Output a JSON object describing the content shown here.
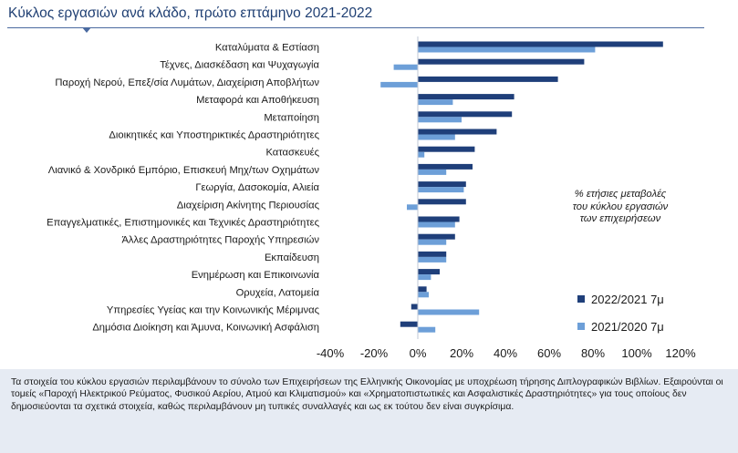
{
  "chart_data": {
    "type": "bar",
    "orientation": "horizontal",
    "title": "Κύκλος εργασιών ανά κλάδο, πρώτο επτάμηνο 2021-2022",
    "annotation": [
      "% ετήσιες μεταβολές",
      "του κύκλου εργασιών",
      "των επιχειρήσεων"
    ],
    "categories": [
      "Καταλύματα & Εστίαση",
      "Τέχνες, Διασκέδαση και Ψυχαγωγία",
      "Παροχή Νερού, Επεξ/σία Λυμάτων, Διαχείριση Αποβλήτων",
      "Μεταφορά και Αποθήκευση",
      "Μεταποίηση",
      "Διοικητικές και Υποστηρικτικές Δραστηριότητες",
      "Κατασκευές",
      "Λιανικό & Χονδρικό Εμπόριο, Επισκευή Μηχ/των Οχημάτων",
      "Γεωργία, Δασοκομία, Αλιεία",
      "Διαχείριση Ακίνητης Περιουσίας",
      "Επαγγελματικές, Επιστημονικές και Τεχνικές Δραστηριότητες",
      "Άλλες Δραστηριότητες Παροχής Υπηρεσιών",
      "Εκπαίδευση",
      "Ενημέρωση και Επικοινωνία",
      "Ορυχεία, Λατομεία",
      "Υπηρεσίες Υγείας και την Κοινωνικής Μέριμνας",
      "Δημόσια Διοίκηση και Άμυνα, Κοινωνική Ασφάλιση"
    ],
    "series": [
      {
        "name": "2022/2021 7μ",
        "color": "#1f3f7a",
        "values": [
          112,
          76,
          64,
          44,
          43,
          36,
          26,
          25,
          22,
          22,
          19,
          17,
          13,
          10,
          4,
          -3,
          -8
        ]
      },
      {
        "name": "2021/2020 7μ",
        "color": "#6d9fd8",
        "values": [
          81,
          -11,
          -17,
          16,
          20,
          17,
          3,
          13,
          21,
          -5,
          17,
          13,
          13,
          6,
          5,
          28,
          8
        ]
      }
    ],
    "xlim": [
      -40,
      120
    ],
    "xticks": [
      -40,
      -20,
      0,
      20,
      40,
      60,
      80,
      100,
      120
    ],
    "xtick_labels": [
      "-40%",
      "-20%",
      "0%",
      "20%",
      "40%",
      "60%",
      "80%",
      "100%",
      "120%"
    ],
    "grid": false,
    "legend_position": "bottom-right"
  },
  "footnote": "Τα στοιχεία του κύκλου εργασιών περιλαμβάνουν το σύνολο των Επιχειρήσεων της Ελληνικής Οικονομίας με υποχρέωση τήρησης Διπλογραφικών Βιβλίων. Εξαιρούνται οι τομείς «Παροχή Ηλεκτρικού Ρεύματος, Φυσικού Αερίου, Ατμού και Κλιματισμού» και «Χρηματοπιστωτικές και Ασφαλιστικές Δραστηριότητες» για τους οποίους δεν δημοσιεύονται τα σχετικά στοιχεία, καθώς περιλαμβάνουν μη τυπικές συναλλαγές και ως εκ τούτου δεν είναι συγκρίσιμα."
}
